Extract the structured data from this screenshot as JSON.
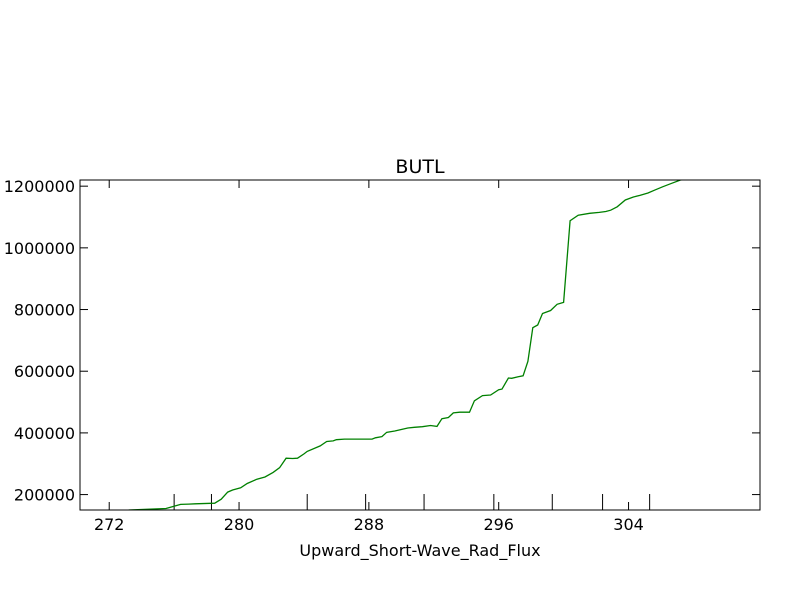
{
  "chart_data": {
    "type": "line",
    "title": "BUTL",
    "xlabel": "Upward_Short-Wave_Rad_Flux",
    "ylabel": "",
    "xlim": [
      270.2,
      312.1
    ],
    "ylim": [
      150000,
      1220000
    ],
    "xticks": [
      272,
      280,
      288,
      296,
      304
    ],
    "yticks": [
      200000,
      400000,
      600000,
      800000,
      1000000,
      1200000
    ],
    "xtick_labels": [
      "272",
      "280",
      "288",
      "296",
      "304"
    ],
    "ytick_labels": [
      "200000",
      "400000",
      "600000",
      "800000",
      "1000000",
      "1200000"
    ],
    "extra_xtick_marks": [
      276,
      278.3,
      284.2,
      287.8,
      291.4,
      295.7,
      299.3,
      302.4,
      305.3
    ],
    "grid": false,
    "line_color": "#008000",
    "series": [
      {
        "x": [
          273.2,
          275.5,
          276.4,
          276.9,
          277.3,
          278.5,
          278.9,
          279.3,
          279.6,
          280.1,
          280.5,
          281.1,
          281.6,
          282.1,
          282.5,
          282.9,
          283.3,
          283.6,
          284.0,
          284.2,
          285.0,
          285.4,
          285.8,
          286.0,
          286.5,
          287.0,
          288.2,
          288.4,
          288.8,
          289.1,
          289.6,
          290.0,
          290.4,
          290.8,
          291.3,
          291.8,
          292.2,
          292.5,
          292.9,
          293.2,
          293.6,
          294.2,
          294.5,
          295.0,
          295.5,
          296.0,
          296.2,
          296.6,
          296.8,
          297.2,
          297.5,
          297.8,
          298.1,
          298.4,
          298.7,
          299.2,
          299.6,
          300.0,
          300.4,
          300.9,
          301.6,
          302.2,
          302.6,
          302.9,
          303.3,
          303.8,
          304.3,
          304.7,
          305.2,
          305.6,
          306.1,
          306.6,
          307.2,
          308.0,
          310.5,
          312.1
        ],
        "y": [
          150000,
          155000,
          168000,
          169000,
          170000,
          172000,
          185000,
          208000,
          215000,
          222000,
          236000,
          250000,
          257000,
          272000,
          287000,
          318000,
          317000,
          318000,
          332000,
          340000,
          358000,
          372000,
          374000,
          378000,
          380000,
          380000,
          380000,
          384000,
          388000,
          402000,
          406000,
          411000,
          416000,
          418000,
          420000,
          424000,
          421000,
          446000,
          450000,
          465000,
          467000,
          467000,
          504000,
          521000,
          523000,
          540000,
          542000,
          578000,
          577000,
          582000,
          585000,
          632000,
          741000,
          750000,
          787000,
          797000,
          817000,
          823000,
          1088000,
          1106000,
          1112000,
          1115000,
          1118000,
          1122000,
          1133000,
          1155000,
          1165000,
          1170000,
          1178000,
          1187000,
          1198000,
          1208000,
          1220000,
          1224000,
          1225000,
          1225000
        ]
      }
    ]
  }
}
